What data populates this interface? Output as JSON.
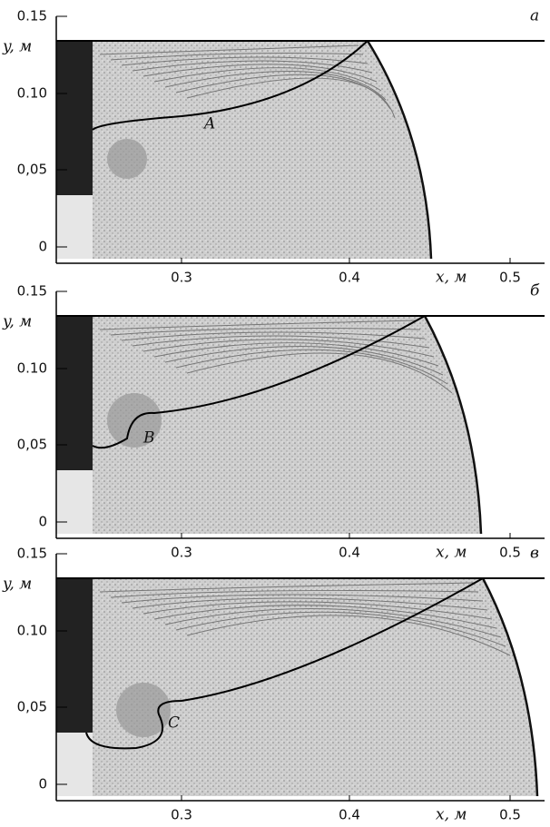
{
  "panels": [
    {
      "letter": "а",
      "y_axis_label": "y, м",
      "x_axis_label": "x, м",
      "yticks": [
        "0.15",
        "0.10",
        "0,05",
        "0"
      ],
      "xticks": [
        "0.3",
        "0.4",
        "0.5"
      ],
      "curve_label": "A"
    },
    {
      "letter": "б",
      "y_axis_label": "y, м",
      "x_axis_label": "x, м",
      "yticks": [
        "0.15",
        "0.10",
        "0,05",
        "0"
      ],
      "xticks": [
        "0.3",
        "0.4",
        "0.5"
      ],
      "curve_label": "B"
    },
    {
      "letter": "в",
      "y_axis_label": "y, м",
      "x_axis_label": "x, м",
      "yticks": [
        "0.15",
        "0.10",
        "0,05",
        "0"
      ],
      "xticks": [
        "0.3",
        "0.4",
        "0.5"
      ],
      "curve_label": "C"
    }
  ]
}
